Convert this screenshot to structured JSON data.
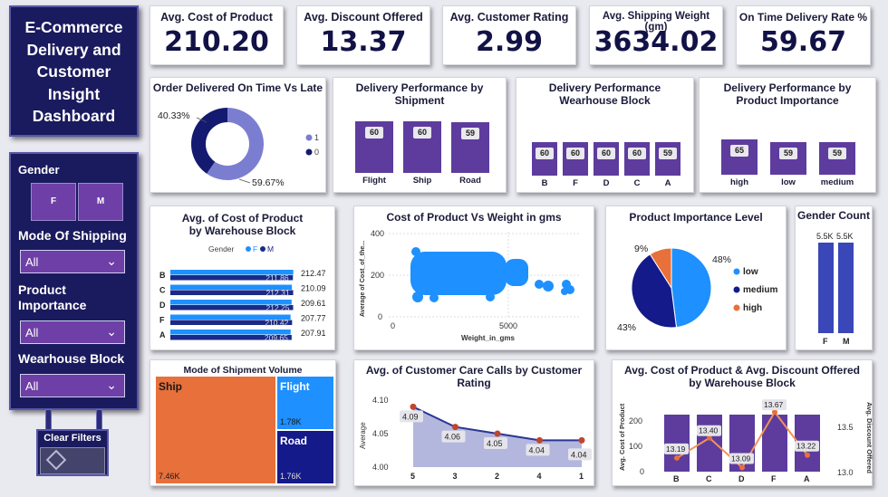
{
  "dashboard_title": "E-Commerce Delivery and Customer Insight Dashboard",
  "kpis": [
    {
      "title": "Avg. Cost of Product",
      "value": "210.20"
    },
    {
      "title": "Avg. Discount Offered",
      "value": "13.37"
    },
    {
      "title": "Avg. Customer Rating",
      "value": "2.99"
    },
    {
      "title": "Avg. Shipping Weight (gm)",
      "value": "3634.02"
    },
    {
      "title": "On Time Delivery Rate %",
      "value": "59.67"
    }
  ],
  "filters": {
    "gender_label": "Gender",
    "gender_options": [
      "F",
      "M"
    ],
    "shipping_label": "Mode Of Shipping",
    "shipping_value": "All",
    "importance_label": "Product Importance",
    "importance_value": "All",
    "block_label": "Wearhouse Block",
    "block_value": "All",
    "clear_label": "Clear Filters"
  },
  "colors": {
    "navy": "#1a1a5e",
    "purple": "#5d3c9e",
    "accent_blue": "#1e90ff",
    "orange": "#e8703a"
  },
  "chart_data": [
    {
      "id": "ontime",
      "type": "pie",
      "title": "Order Delivered On Time Vs Late",
      "categories": [
        "1",
        "0"
      ],
      "values": [
        59.67,
        40.33
      ],
      "labels": [
        "59.67%",
        "40.33%"
      ],
      "colors": [
        "#7b7ed0",
        "#141a70"
      ]
    },
    {
      "id": "shipment",
      "type": "bar",
      "title": "Delivery Performance by Shipment",
      "categories": [
        "Flight",
        "Ship",
        "Road"
      ],
      "values": [
        60,
        60,
        59
      ]
    },
    {
      "id": "warehouse",
      "type": "bar",
      "title": "Delivery Performance Wearhouse Block",
      "categories": [
        "B",
        "F",
        "D",
        "C",
        "A"
      ],
      "values": [
        60,
        60,
        60,
        60,
        59
      ]
    },
    {
      "id": "importance_perf",
      "type": "bar",
      "title": "Delivery Performance by Product Importance",
      "categories": [
        "high",
        "low",
        "medium"
      ],
      "values": [
        65,
        59,
        59
      ]
    },
    {
      "id": "cost_by_block",
      "type": "bar",
      "title": "Avg. of Cost of Product by Warehouse Block",
      "legend_title": "Gender",
      "categories": [
        "B",
        "C",
        "D",
        "F",
        "A"
      ],
      "series": [
        {
          "name": "F",
          "values": [
            212.47,
            210.09,
            209.61,
            207.77,
            207.91
          ],
          "labels": [
            "212.47",
            "210.09",
            "209.61",
            "207.77",
            "207.91"
          ]
        },
        {
          "name": "M",
          "values": [
            211.86,
            212.31,
            212.25,
            210.42,
            209.65
          ],
          "labels": [
            "211.86",
            "212.31",
            "212.25",
            "210.42",
            "209.65"
          ]
        }
      ]
    },
    {
      "id": "cost_weight",
      "type": "scatter",
      "title": "Cost of Product Vs Weight in gms",
      "xlabel": "Weight_in_gms",
      "ylabel": "Average of Cost_of_the...",
      "xlim": [
        0,
        8000
      ],
      "ylim": [
        0,
        400
      ],
      "xticks": [
        "0",
        "5000"
      ],
      "yticks": [
        "400",
        "200",
        "0"
      ]
    },
    {
      "id": "importance_level",
      "type": "pie",
      "title": "Product Importance Level",
      "categories": [
        "low",
        "medium",
        "high"
      ],
      "values": [
        48,
        43,
        9
      ],
      "labels": [
        "48%",
        "43%",
        "9%"
      ],
      "colors": [
        "#1e90ff",
        "#141a8a",
        "#e8703a"
      ]
    },
    {
      "id": "gender_count",
      "type": "bar",
      "title": "Gender Count",
      "categories": [
        "F",
        "M"
      ],
      "values": [
        5500,
        5500
      ],
      "labels": [
        "5.5K",
        "5.5K"
      ]
    },
    {
      "id": "ship_volume",
      "type": "treemap",
      "title": "Mode of Shipment Volume",
      "categories": [
        "Ship",
        "Flight",
        "Road"
      ],
      "values": [
        7460,
        1780,
        1760
      ],
      "labels": [
        "7.46K",
        "1.78K",
        "1.76K"
      ]
    },
    {
      "id": "care_calls",
      "type": "area",
      "title": "Avg. of Customer Care Calls by Customer Rating",
      "ylabel": "Average",
      "categories": [
        "5",
        "3",
        "2",
        "4",
        "1"
      ],
      "values": [
        4.09,
        4.06,
        4.05,
        4.04,
        4.04
      ],
      "labels": [
        "4.09",
        "4.06",
        "4.05",
        "4.04",
        "4.04"
      ],
      "ylim": [
        4.0,
        4.1
      ],
      "yticks": [
        "4.10",
        "4.05",
        "4.00"
      ]
    },
    {
      "id": "cost_discount",
      "type": "bar",
      "title": "Avg. Cost of Product & Avg. Discount Offered by Warehouse Block",
      "ylabel": "Avg. Cost of Product",
      "y2label": "Avg. Discount Offered",
      "categories": [
        "B",
        "C",
        "D",
        "F",
        "A"
      ],
      "bar_values": [
        210,
        210,
        210,
        210,
        210
      ],
      "line_values": [
        13.19,
        13.4,
        13.09,
        13.67,
        13.22
      ],
      "line_labels": [
        "13.19",
        "13.40",
        "13.09",
        "13.67",
        "13.22"
      ],
      "ylim": [
        0,
        200
      ],
      "yticks": [
        "200",
        "100",
        "0"
      ],
      "y2lim": [
        13.0,
        13.7
      ],
      "y2ticks": [
        "13.5",
        "13.0"
      ]
    }
  ]
}
